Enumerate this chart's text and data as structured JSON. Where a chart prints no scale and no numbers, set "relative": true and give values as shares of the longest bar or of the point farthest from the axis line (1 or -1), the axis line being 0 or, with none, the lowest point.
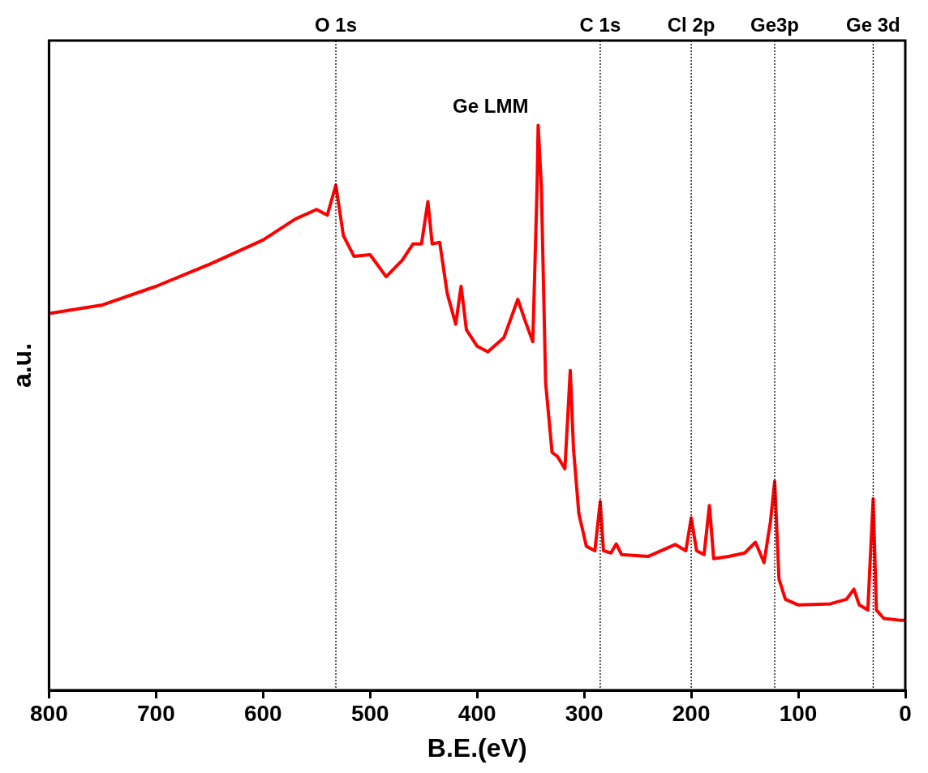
{
  "chart_data": {
    "type": "line",
    "xlabel": "B.E.(eV)",
    "ylabel": "a.u.",
    "relative": true,
    "xlim": [
      800,
      0
    ],
    "xticks": [
      800,
      700,
      600,
      500,
      400,
      300,
      200,
      100,
      0
    ],
    "grid": false,
    "legend": false,
    "marker": "none",
    "line_style": "solid",
    "annotations": [
      "Ge LMM"
    ],
    "ref_lines": [
      {
        "axis": "x",
        "value": 532,
        "label": "O 1s",
        "line_style": "dotted",
        "color": "#000000"
      },
      {
        "axis": "x",
        "value": 285,
        "label": "C 1s",
        "line_style": "dotted",
        "color": "#000000"
      },
      {
        "axis": "x",
        "value": 200,
        "label": "Cl 2p",
        "line_style": "dotted",
        "color": "#000000"
      },
      {
        "axis": "x",
        "value": 122,
        "label": "Ge3p",
        "line_style": "dotted",
        "color": "#000000"
      },
      {
        "axis": "x",
        "value": 30,
        "label": "Ge 3d",
        "line_style": "dotted",
        "color": "#000000"
      }
    ],
    "x": [
      800,
      750,
      700,
      650,
      600,
      570,
      550,
      540,
      532,
      525,
      515,
      500,
      485,
      470,
      460,
      452,
      446,
      442,
      435,
      428,
      420,
      415,
      410,
      400,
      390,
      375,
      362,
      355,
      348,
      344,
      343,
      340,
      336,
      330,
      325,
      318,
      313,
      310,
      305,
      298,
      290,
      285,
      282,
      275,
      270,
      265,
      240,
      215,
      205,
      200,
      195,
      188,
      183,
      179,
      165,
      150,
      140,
      132,
      126,
      122,
      118,
      112,
      100,
      70,
      55,
      48,
      43,
      35,
      30,
      27,
      20,
      5,
      0
    ],
    "series": [
      {
        "color": "#ff0000",
        "values": [
          0.667,
          0.682,
          0.715,
          0.754,
          0.797,
          0.834,
          0.851,
          0.841,
          0.894,
          0.805,
          0.768,
          0.771,
          0.732,
          0.761,
          0.79,
          0.79,
          0.865,
          0.79,
          0.793,
          0.703,
          0.648,
          0.715,
          0.638,
          0.609,
          0.599,
          0.624,
          0.692,
          0.653,
          0.617,
          0.891,
          1.0,
          0.891,
          0.544,
          0.421,
          0.414,
          0.392,
          0.566,
          0.428,
          0.313,
          0.255,
          0.247,
          0.334,
          0.247,
          0.243,
          0.259,
          0.24,
          0.237,
          0.258,
          0.247,
          0.305,
          0.247,
          0.24,
          0.327,
          0.233,
          0.237,
          0.243,
          0.262,
          0.226,
          0.298,
          0.37,
          0.197,
          0.161,
          0.151,
          0.153,
          0.161,
          0.179,
          0.151,
          0.142,
          0.339,
          0.142,
          0.127,
          0.124,
          0.124
        ]
      }
    ]
  }
}
